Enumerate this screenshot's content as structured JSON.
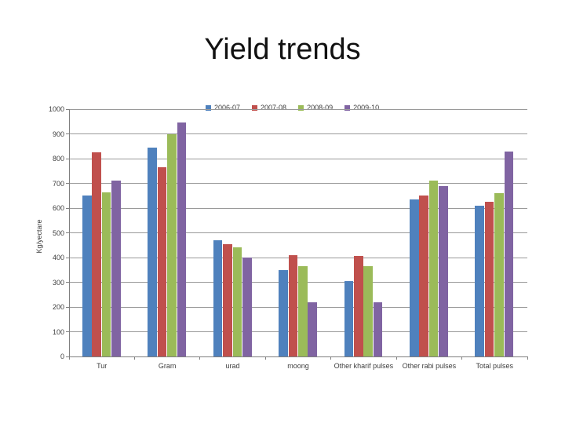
{
  "slide": {
    "title": "Yield trends"
  },
  "chart_data": {
    "type": "bar",
    "title": "Yield trends",
    "xlabel": "",
    "ylabel": "Kg/yectare",
    "ylim": [
      0,
      1000
    ],
    "ytick_step": 100,
    "grid": true,
    "legend_position": "top-inside",
    "categories": [
      "Tur",
      "Gram",
      "urad",
      "moong",
      "Other kharif pulses",
      "Other rabi pulses",
      "Total pulses"
    ],
    "series": [
      {
        "name": "2006-07",
        "color": "#4F81BD",
        "values": [
          650,
          845,
          470,
          350,
          305,
          635,
          610
        ]
      },
      {
        "name": "2007-08",
        "color": "#C0504D",
        "values": [
          825,
          765,
          455,
          410,
          405,
          650,
          625
        ]
      },
      {
        "name": "2008-09",
        "color": "#9BBB59",
        "values": [
          665,
          900,
          440,
          365,
          365,
          710,
          660
        ]
      },
      {
        "name": "2009-10",
        "color": "#8064A2",
        "values": [
          710,
          945,
          400,
          220,
          220,
          690,
          830
        ]
      }
    ]
  }
}
